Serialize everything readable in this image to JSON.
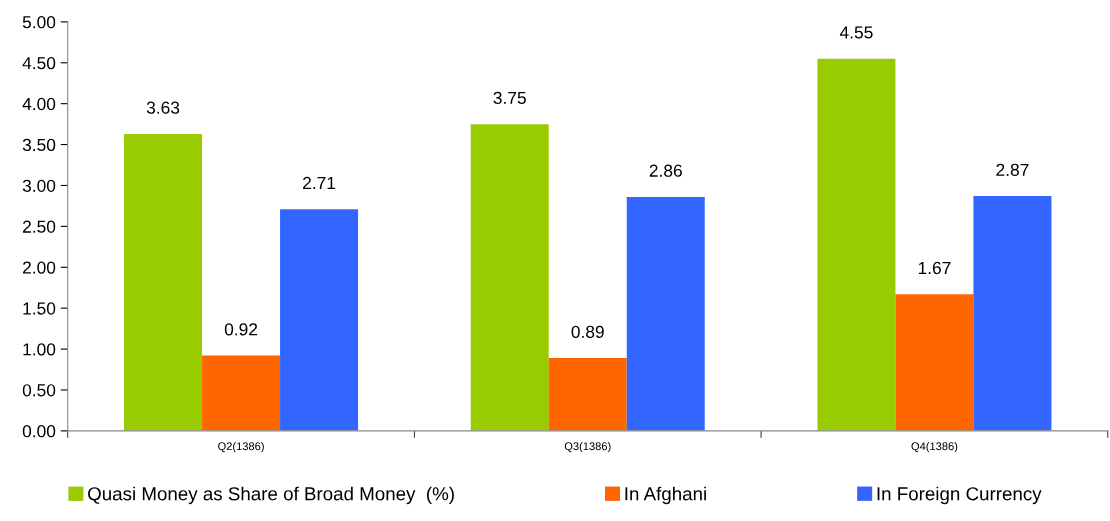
{
  "chart_data": {
    "type": "bar",
    "categories": [
      "Q2(1386)",
      "Q3(1386)",
      "Q4(1386)"
    ],
    "series": [
      {
        "name": "Quasi Money as Share of Broad Money  (%)",
        "color": "#99cc00",
        "values": [
          3.63,
          3.75,
          4.55
        ]
      },
      {
        "name": "In Afghani",
        "color": "#ff6600",
        "values": [
          0.92,
          0.89,
          1.67
        ]
      },
      {
        "name": "In Foreign Currency",
        "color": "#3366ff",
        "values": [
          2.71,
          2.86,
          2.87
        ]
      }
    ],
    "ylim": [
      0,
      5
    ],
    "yticks": [
      {
        "value": 0,
        "label": "0.00"
      },
      {
        "value": 0.5,
        "label": "0.50"
      },
      {
        "value": 1,
        "label": "1.00"
      },
      {
        "value": 1.5,
        "label": "1.50"
      },
      {
        "value": 2,
        "label": "2.00"
      },
      {
        "value": 2.5,
        "label": "2.50"
      },
      {
        "value": 3,
        "label": "3.00"
      },
      {
        "value": 3.5,
        "label": "3.50"
      },
      {
        "value": 4,
        "label": "4.00"
      },
      {
        "value": 4.5,
        "label": "4.50"
      },
      {
        "value": 5,
        "label": "5.00"
      }
    ],
    "data_labels": true,
    "grid": false,
    "legend": "bottom"
  }
}
